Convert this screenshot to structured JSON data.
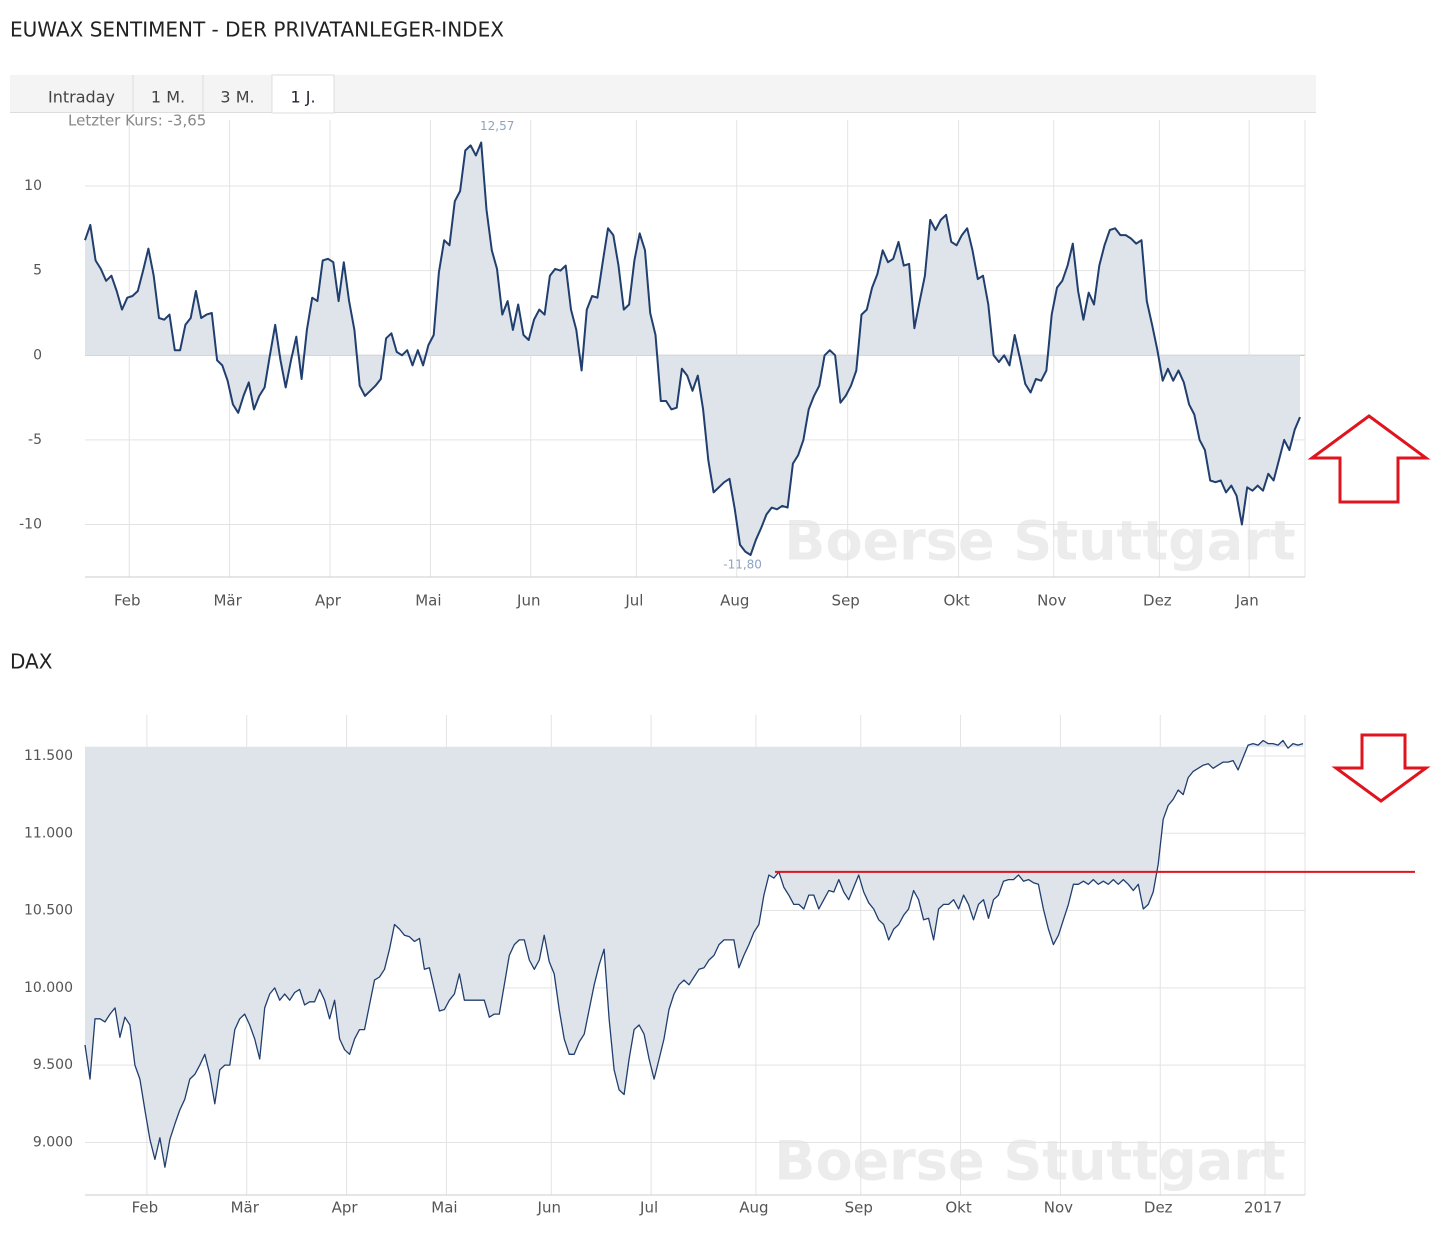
{
  "header": {
    "title": "EUWAX SENTIMENT - DER PRIVATANLEGER-INDEX"
  },
  "tabs": [
    "Intraday",
    "1 M.",
    "3 M.",
    "1 J."
  ],
  "active_tab": 3,
  "chart_data": [
    {
      "type": "area",
      "last_label": "Letzter Kurs: -3,65",
      "watermark": "Boerse Stuttgart",
      "color": "#203f6e",
      "fill_color": "#dfe3ea",
      "area_base": 0,
      "grid": true,
      "ylim": [
        -13.1,
        13.9
      ],
      "yticks": [
        -10,
        -5,
        0,
        5,
        10
      ],
      "categories": [
        null,
        null,
        null,
        null,
        null,
        null,
        null,
        null,
        "Feb",
        null,
        null,
        null,
        null,
        null,
        null,
        null,
        null,
        null,
        null,
        null,
        null,
        null,
        null,
        null,
        null,
        null,
        null,
        "Mär",
        null,
        null,
        null,
        null,
        null,
        null,
        null,
        null,
        null,
        null,
        null,
        null,
        null,
        null,
        null,
        null,
        null,
        null,
        "Apr",
        null,
        null,
        null,
        null,
        null,
        null,
        null,
        null,
        null,
        null,
        null,
        null,
        null,
        null,
        null,
        null,
        null,
        null,
        "Mai",
        null,
        null,
        null,
        null,
        null,
        null,
        null,
        null,
        null,
        null,
        null,
        null,
        null,
        null,
        null,
        null,
        null,
        null,
        "Jun",
        null,
        null,
        null,
        null,
        null,
        null,
        null,
        null,
        null,
        null,
        null,
        null,
        null,
        null,
        null,
        null,
        null,
        null,
        null,
        "Jul",
        null,
        null,
        null,
        null,
        null,
        null,
        null,
        null,
        null,
        null,
        null,
        null,
        null,
        null,
        null,
        null,
        null,
        null,
        "Aug",
        null,
        null,
        null,
        null,
        null,
        null,
        null,
        null,
        null,
        null,
        null,
        null,
        null,
        null,
        null,
        null,
        null,
        null,
        null,
        null,
        "Sep",
        null,
        null,
        null,
        null,
        null,
        null,
        null,
        null,
        null,
        null,
        null,
        null,
        null,
        null,
        null,
        null,
        null,
        null,
        null,
        null,
        "Okt",
        null,
        null,
        null,
        null,
        null,
        null,
        null,
        null,
        null,
        null,
        null,
        null,
        null,
        null,
        null,
        null,
        null,
        "Nov",
        null,
        null,
        null,
        null,
        null,
        null,
        null,
        null,
        null,
        null,
        null,
        null,
        null,
        null,
        null,
        null,
        null,
        null,
        null,
        "Dez",
        null,
        null,
        null,
        null,
        null,
        null,
        null,
        null,
        null,
        null,
        null,
        null,
        null,
        null,
        null,
        null,
        "Jan",
        null,
        null,
        null,
        null,
        null,
        null,
        null,
        null,
        null,
        null
      ],
      "values": [
        6.8,
        7.7,
        5.6,
        5.1,
        4.4,
        4.7,
        3.8,
        2.7,
        3.4,
        3.5,
        3.8,
        5.0,
        6.3,
        4.7,
        2.2,
        2.1,
        2.4,
        0.3,
        0.3,
        1.8,
        2.2,
        3.8,
        2.2,
        2.4,
        2.5,
        -0.3,
        -0.6,
        -1.5,
        -2.9,
        -3.4,
        -2.4,
        -1.6,
        -3.2,
        -2.4,
        -1.9,
        0,
        1.8,
        -0.3,
        -1.9,
        -0.3,
        1.1,
        -1.4,
        1.5,
        3.4,
        3.2,
        5.6,
        5.7,
        5.5,
        3.2,
        5.5,
        3.2,
        1.5,
        -1.8,
        -2.4,
        -2.1,
        -1.8,
        -1.4,
        1.0,
        1.3,
        0.2,
        0,
        0.3,
        -0.6,
        0.3,
        -0.6,
        0.6,
        1.2,
        4.9,
        6.8,
        6.5,
        9.1,
        9.7,
        12.1,
        12.4,
        11.8,
        12.57,
        8.6,
        6.2,
        5.1,
        2.4,
        3.2,
        1.5,
        3.0,
        1.2,
        0.9,
        2.1,
        2.7,
        2.4,
        4.7,
        5.1,
        5.0,
        5.3,
        2.7,
        1.5,
        -0.9,
        2.7,
        3.5,
        3.4,
        5.5,
        7.5,
        7.1,
        5.3,
        2.7,
        3.0,
        5.6,
        7.2,
        6.2,
        2.5,
        1.2,
        -2.7,
        -2.7,
        -3.2,
        -3.1,
        -0.8,
        -1.2,
        -2.1,
        -1.2,
        -3.2,
        -6.2,
        -8.1,
        -7.8,
        -7.5,
        -7.3,
        -9.1,
        -11.2,
        -11.6,
        -11.8,
        -10.9,
        -10.2,
        -9.4,
        -9.0,
        -9.1,
        -8.9,
        -9.0,
        -6.4,
        -5.9,
        -5.0,
        -3.2,
        -2.4,
        -1.8,
        0,
        0.3,
        0,
        -2.8,
        -2.4,
        -1.8,
        -0.9,
        2.4,
        2.7,
        4.0,
        4.8,
        6.2,
        5.5,
        5.7,
        6.7,
        5.3,
        5.4,
        1.6,
        3.2,
        4.7,
        8.0,
        7.4,
        8.0,
        8.3,
        6.7,
        6.5,
        7.1,
        7.5,
        6.2,
        4.5,
        4.7,
        3.0,
        0,
        -0.4,
        0,
        -0.6,
        1.2,
        -0.2,
        -1.7,
        -2.2,
        -1.4,
        -1.5,
        -0.9,
        2.4,
        4.0,
        4.4,
        5.3,
        6.6,
        3.8,
        2.1,
        3.7,
        3.0,
        5.3,
        6.5,
        7.4,
        7.5,
        7.1,
        7.1,
        6.9,
        6.6,
        6.8,
        3.2,
        1.8,
        0.3,
        -1.5,
        -0.8,
        -1.5,
        -0.9,
        -1.6,
        -2.9,
        -3.5,
        -5.0,
        -5.6,
        -7.4,
        -7.5,
        -7.4,
        -8.1,
        -7.7,
        -8.3,
        -10.0,
        -7.8,
        -8.0,
        -7.7,
        -8.0,
        -7.0,
        -7.4,
        -6.2,
        -5.0,
        -5.6,
        -4.4,
        -3.65
      ],
      "value_labels": [
        null,
        null,
        null,
        null,
        null,
        null,
        null,
        null,
        null,
        null,
        null,
        null,
        null,
        null,
        null,
        null,
        null,
        null,
        null,
        null,
        null,
        null,
        null,
        null,
        null,
        null,
        null,
        null,
        null,
        null,
        null,
        null,
        null,
        null,
        null,
        null,
        null,
        null,
        null,
        null,
        null,
        null,
        null,
        null,
        null,
        null,
        null,
        null,
        null,
        null,
        null,
        null,
        null,
        null,
        null,
        null,
        null,
        null,
        null,
        null,
        null,
        null,
        null,
        null,
        null,
        null,
        null,
        null,
        null,
        null,
        null,
        null,
        null,
        null,
        null,
        "12,57",
        null,
        null,
        null,
        null,
        null,
        null,
        null,
        null,
        null,
        null,
        null,
        null,
        null,
        null,
        null,
        null,
        null,
        null,
        null,
        null,
        null,
        null,
        null,
        null,
        null,
        null,
        null,
        null,
        null,
        null,
        null,
        null,
        null,
        null,
        null,
        null,
        null,
        null,
        null,
        null,
        null,
        null,
        null,
        null,
        null,
        null,
        null,
        null,
        null,
        null,
        "-11,80",
        null,
        null,
        null,
        null,
        null,
        null,
        null,
        null,
        null,
        null,
        null,
        null,
        null,
        null,
        null,
        null,
        null,
        null,
        null,
        null,
        null,
        null,
        null,
        null,
        null,
        null,
        null,
        null,
        null,
        null,
        null,
        null,
        null,
        null,
        null,
        null,
        null,
        null,
        null,
        null,
        null,
        null,
        null,
        null,
        null,
        null,
        null,
        null,
        null,
        null,
        null,
        null,
        null,
        null,
        null,
        null,
        null,
        null,
        null,
        null,
        null,
        null,
        null,
        null,
        null,
        null,
        null,
        null,
        null,
        null,
        null,
        null,
        null,
        null,
        null,
        null,
        null,
        null,
        null,
        null,
        null,
        null,
        null,
        null,
        null,
        null,
        null,
        null,
        null,
        null,
        null,
        null,
        null,
        null,
        null,
        null,
        null,
        null,
        null,
        null,
        null,
        null,
        null,
        null
      ]
    },
    {
      "type": "area",
      "title": "DAX",
      "watermark": "Boerse Stuttgart",
      "color": "#203f6e",
      "fill_color": "#dfe3ea",
      "area_base": 11560,
      "grid": true,
      "ylim": [
        8660,
        11765
      ],
      "yticks": [
        {
          "value": 9000,
          "label": "9.000"
        },
        {
          "value": 9500,
          "label": "9.500"
        },
        {
          "value": 10000,
          "label": "10.000"
        },
        {
          "value": 10500,
          "label": "10.500"
        },
        {
          "value": 11000,
          "label": "11.000"
        },
        {
          "value": 11500,
          "label": "11.500"
        }
      ],
      "reference_line": {
        "value": 10750,
        "color": "#e0141e"
      },
      "categories": [
        null,
        null,
        null,
        null,
        null,
        null,
        null,
        null,
        null,
        null,
        null,
        null,
        "Feb",
        null,
        null,
        null,
        null,
        null,
        null,
        null,
        null,
        null,
        null,
        null,
        null,
        null,
        null,
        null,
        null,
        null,
        null,
        null,
        "Mär",
        null,
        null,
        null,
        null,
        null,
        null,
        null,
        null,
        null,
        null,
        null,
        null,
        null,
        null,
        null,
        null,
        null,
        null,
        null,
        "Apr",
        null,
        null,
        null,
        null,
        null,
        null,
        null,
        null,
        null,
        null,
        null,
        null,
        null,
        null,
        null,
        null,
        null,
        null,
        null,
        "Mai",
        null,
        null,
        null,
        null,
        null,
        null,
        null,
        null,
        null,
        null,
        null,
        null,
        null,
        null,
        null,
        null,
        null,
        null,
        null,
        null,
        "Jun",
        null,
        null,
        null,
        null,
        null,
        null,
        null,
        null,
        null,
        null,
        null,
        null,
        null,
        null,
        null,
        null,
        null,
        null,
        null,
        "Jul",
        null,
        null,
        null,
        null,
        null,
        null,
        null,
        null,
        null,
        null,
        null,
        null,
        null,
        null,
        null,
        null,
        null,
        null,
        null,
        null,
        "Aug",
        null,
        null,
        null,
        null,
        null,
        null,
        null,
        null,
        null,
        null,
        null,
        null,
        null,
        null,
        null,
        null,
        null,
        null,
        null,
        null,
        "Sep",
        null,
        null,
        null,
        null,
        null,
        null,
        null,
        null,
        null,
        null,
        null,
        null,
        null,
        null,
        null,
        null,
        null,
        null,
        null,
        "Okt",
        null,
        null,
        null,
        null,
        null,
        null,
        null,
        null,
        null,
        null,
        null,
        null,
        null,
        null,
        null,
        null,
        null,
        null,
        null,
        "Nov",
        null,
        null,
        null,
        null,
        null,
        null,
        null,
        null,
        null,
        null,
        null,
        null,
        null,
        null,
        null,
        null,
        null,
        null,
        null,
        "Dez",
        null,
        null,
        null,
        null,
        null,
        null,
        null,
        null,
        null,
        null,
        null,
        null,
        null,
        null,
        null,
        null,
        null,
        null,
        null,
        null,
        "2017",
        null,
        null,
        null,
        null,
        null,
        null,
        null,
        null
      ],
      "values": [
        9630,
        9410,
        9800,
        9800,
        9780,
        9830,
        9870,
        9680,
        9810,
        9760,
        9500,
        9410,
        9210,
        9020,
        8890,
        9030,
        8840,
        9020,
        9120,
        9210,
        9280,
        9410,
        9440,
        9500,
        9570,
        9440,
        9250,
        9470,
        9500,
        9500,
        9730,
        9800,
        9830,
        9760,
        9670,
        9540,
        9870,
        9960,
        10000,
        9920,
        9960,
        9920,
        9970,
        9990,
        9890,
        9910,
        9910,
        9990,
        9920,
        9800,
        9920,
        9670,
        9600,
        9570,
        9670,
        9730,
        9730,
        9890,
        10050,
        10070,
        10120,
        10250,
        10410,
        10380,
        10340,
        10330,
        10300,
        10320,
        10120,
        10130,
        9990,
        9850,
        9860,
        9920,
        9960,
        10090,
        9920,
        9920,
        9920,
        9920,
        9920,
        9810,
        9830,
        9830,
        10020,
        10210,
        10280,
        10310,
        10310,
        10180,
        10120,
        10180,
        10340,
        10170,
        10090,
        9860,
        9670,
        9570,
        9570,
        9650,
        9700,
        9860,
        10020,
        10150,
        10250,
        9800,
        9470,
        9340,
        9310,
        9540,
        9730,
        9760,
        9700,
        9540,
        9410,
        9540,
        9670,
        9860,
        9960,
        10020,
        10050,
        10020,
        10070,
        10120,
        10130,
        10180,
        10210,
        10280,
        10310,
        10310,
        10310,
        10130,
        10210,
        10280,
        10360,
        10410,
        10600,
        10730,
        10710,
        10750,
        10650,
        10600,
        10540,
        10540,
        10510,
        10600,
        10600,
        10510,
        10570,
        10630,
        10620,
        10700,
        10620,
        10570,
        10650,
        10730,
        10620,
        10550,
        10510,
        10440,
        10410,
        10310,
        10380,
        10410,
        10470,
        10510,
        10630,
        10570,
        10440,
        10450,
        10310,
        10510,
        10540,
        10540,
        10570,
        10510,
        10600,
        10540,
        10440,
        10540,
        10570,
        10450,
        10570,
        10600,
        10690,
        10700,
        10700,
        10730,
        10690,
        10700,
        10680,
        10670,
        10510,
        10380,
        10280,
        10340,
        10440,
        10540,
        10670,
        10670,
        10690,
        10670,
        10700,
        10670,
        10690,
        10670,
        10700,
        10670,
        10700,
        10670,
        10630,
        10670,
        10510,
        10540,
        10620,
        10800,
        11090,
        11180,
        11220,
        11280,
        11250,
        11360,
        11400,
        11420,
        11440,
        11450,
        11420,
        11440,
        11460,
        11460,
        11470,
        11410,
        11490,
        11570,
        11580,
        11570,
        11600,
        11580,
        11580,
        11570,
        11600,
        11550,
        11580,
        11570,
        11580
      ]
    }
  ]
}
